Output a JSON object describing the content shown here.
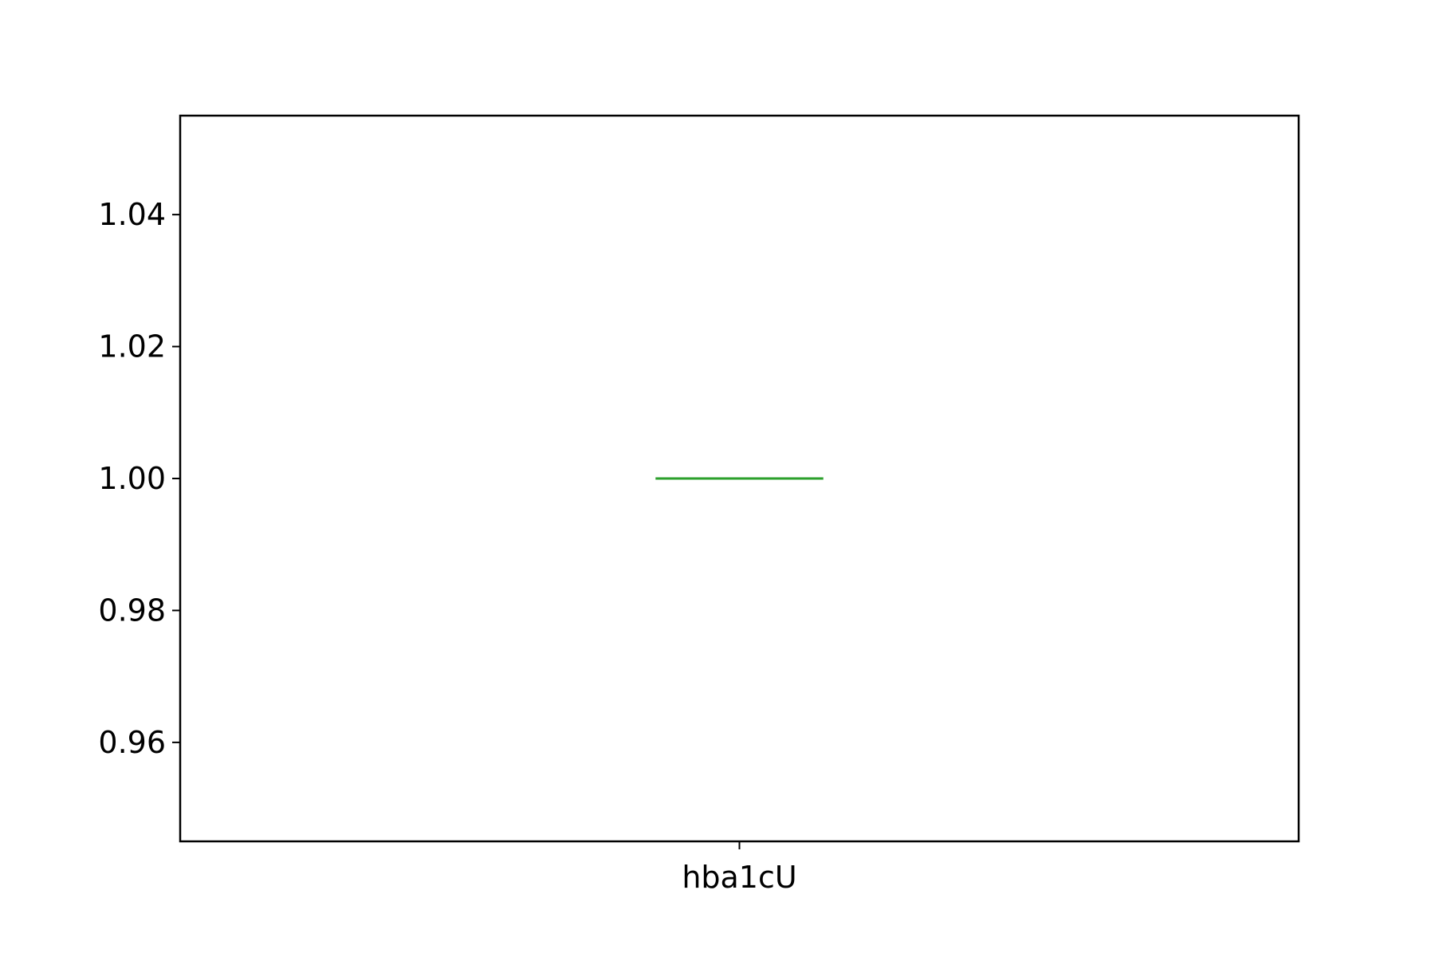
{
  "chart_data": {
    "type": "box",
    "title": "",
    "xlabel": "",
    "ylabel": "",
    "categories": [
      "hba1cU"
    ],
    "boxes": [
      {
        "name": "hba1cU",
        "whislo": 1.0,
        "q1": 1.0,
        "median": 1.0,
        "q3": 1.0,
        "whishi": 1.0
      }
    ],
    "ylim": [
      0.945,
      1.055
    ],
    "yticks": [
      0.96,
      0.98,
      1.0,
      1.02,
      1.04
    ],
    "ytick_labels": [
      "0.96",
      "0.98",
      "1.00",
      "1.02",
      "1.04"
    ],
    "grid": false,
    "colors": {
      "axes": "#000000",
      "median": "#2ca02c",
      "box": "#000000"
    }
  }
}
